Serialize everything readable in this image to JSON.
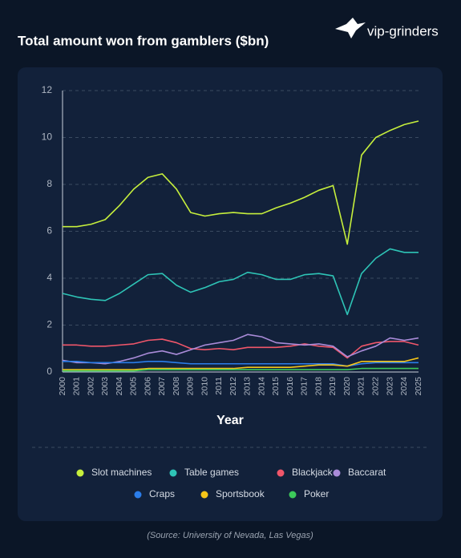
{
  "brand": "vip-grinders",
  "chart_data": {
    "type": "line",
    "title": "Total amount won from gamblers ($bn)",
    "x_label": "Year",
    "source": "(Source: University of Nevada, Las Vegas)",
    "x": [
      2000,
      2001,
      2002,
      2003,
      2004,
      2005,
      2006,
      2007,
      2008,
      2009,
      2010,
      2011,
      2012,
      2013,
      2014,
      2015,
      2016,
      2017,
      2018,
      2019,
      2020,
      2021,
      2022,
      2023,
      2024,
      2025
    ],
    "xlim": [
      2000,
      2025
    ],
    "ylim": [
      0,
      12
    ],
    "yticks": [
      0,
      2,
      4,
      6,
      8,
      10,
      12
    ],
    "grid": true,
    "legend": "bottom",
    "series": [
      {
        "name": "Slot machines",
        "color": "#c6ef3c",
        "values": [
          6.2,
          6.2,
          6.3,
          6.5,
          7.1,
          7.8,
          8.3,
          8.45,
          7.8,
          6.8,
          6.65,
          6.75,
          6.8,
          6.75,
          6.75,
          7.0,
          7.2,
          7.45,
          7.75,
          7.95,
          5.45,
          9.25,
          10.0,
          10.3,
          10.55,
          10.7
        ]
      },
      {
        "name": "Table games",
        "color": "#2ec4b6",
        "values": [
          3.35,
          3.2,
          3.1,
          3.05,
          3.35,
          3.75,
          4.15,
          4.2,
          3.7,
          3.4,
          3.6,
          3.85,
          3.95,
          4.25,
          4.15,
          3.95,
          3.95,
          4.15,
          4.2,
          4.1,
          2.45,
          4.2,
          4.85,
          5.25,
          5.1,
          5.1
        ]
      },
      {
        "name": "Blackjack",
        "color": "#f0566a",
        "values": [
          1.15,
          1.15,
          1.1,
          1.1,
          1.15,
          1.2,
          1.35,
          1.4,
          1.25,
          1.0,
          0.95,
          1.0,
          0.95,
          1.05,
          1.05,
          1.05,
          1.1,
          1.2,
          1.1,
          1.05,
          0.6,
          1.1,
          1.25,
          1.3,
          1.3,
          1.15
        ]
      },
      {
        "name": "Baccarat",
        "color": "#a98bd8",
        "values": [
          0.5,
          0.4,
          0.4,
          0.35,
          0.45,
          0.6,
          0.8,
          0.9,
          0.75,
          0.95,
          1.15,
          1.25,
          1.35,
          1.6,
          1.5,
          1.25,
          1.2,
          1.15,
          1.2,
          1.1,
          0.65,
          0.9,
          1.1,
          1.45,
          1.35,
          1.45
        ]
      },
      {
        "name": "Craps",
        "color": "#2b7de9",
        "values": [
          0.45,
          0.45,
          0.4,
          0.4,
          0.4,
          0.4,
          0.45,
          0.45,
          0.4,
          0.35,
          0.35,
          0.35,
          0.35,
          0.35,
          0.35,
          0.35,
          0.35,
          0.35,
          0.35,
          0.35,
          0.25,
          0.35,
          0.4,
          0.4,
          0.4,
          0.4
        ]
      },
      {
        "name": "Sportsbook",
        "color": "#f5c518",
        "values": [
          0.1,
          0.1,
          0.1,
          0.1,
          0.1,
          0.1,
          0.15,
          0.15,
          0.15,
          0.15,
          0.15,
          0.15,
          0.15,
          0.2,
          0.2,
          0.2,
          0.2,
          0.25,
          0.3,
          0.3,
          0.25,
          0.45,
          0.45,
          0.45,
          0.45,
          0.6
        ]
      },
      {
        "name": "Poker",
        "color": "#3cc95a",
        "values": [
          0.05,
          0.05,
          0.05,
          0.05,
          0.05,
          0.05,
          0.1,
          0.1,
          0.1,
          0.1,
          0.1,
          0.1,
          0.1,
          0.1,
          0.1,
          0.1,
          0.1,
          0.1,
          0.1,
          0.1,
          0.1,
          0.15,
          0.15,
          0.15,
          0.15,
          0.15
        ]
      }
    ]
  }
}
